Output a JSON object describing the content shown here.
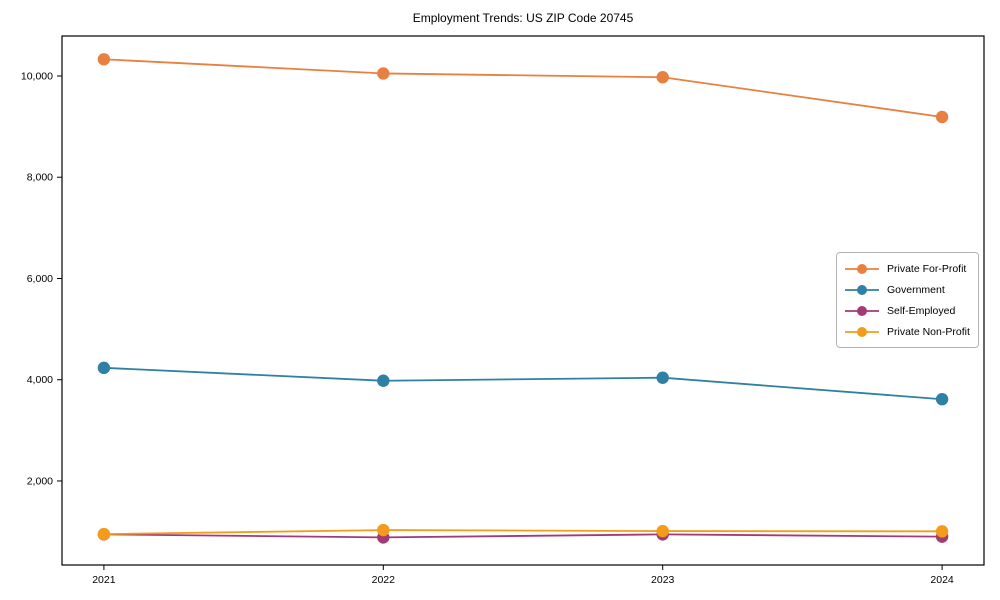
{
  "figure": {
    "background": "#ffffff",
    "frame_color": "#000000",
    "tick_color": "#000000",
    "label_color": "#000000"
  },
  "chart_data": {
    "type": "line",
    "title": "Employment Trends: US ZIP Code 20745",
    "xlabel": "",
    "ylabel": "",
    "x": [
      2021,
      2022,
      2023,
      2024
    ],
    "x_tick_labels": [
      "2021",
      "2022",
      "2023",
      "2024"
    ],
    "y_ticks": [
      2000,
      4000,
      6000,
      8000,
      10000
    ],
    "y_tick_labels": [
      "2,000",
      "4,000",
      "6,000",
      "8,000",
      "10,000"
    ],
    "xlim": [
      2020.85,
      2024.15
    ],
    "ylim": [
      340,
      10790
    ],
    "grid": false,
    "legend_position": "center right",
    "series": [
      {
        "name": "Private For-Profit",
        "color": "#E8803F",
        "values": [
          10330,
          10050,
          9975,
          9190
        ]
      },
      {
        "name": "Government",
        "color": "#2E80A5",
        "values": [
          4235,
          3980,
          4040,
          3615
        ]
      },
      {
        "name": "Self-Employed",
        "color": "#A23A74",
        "values": [
          945,
          885,
          945,
          900
        ]
      },
      {
        "name": "Private Non-Profit",
        "color": "#F39C1B",
        "values": [
          950,
          1030,
          1010,
          1005
        ]
      }
    ]
  }
}
